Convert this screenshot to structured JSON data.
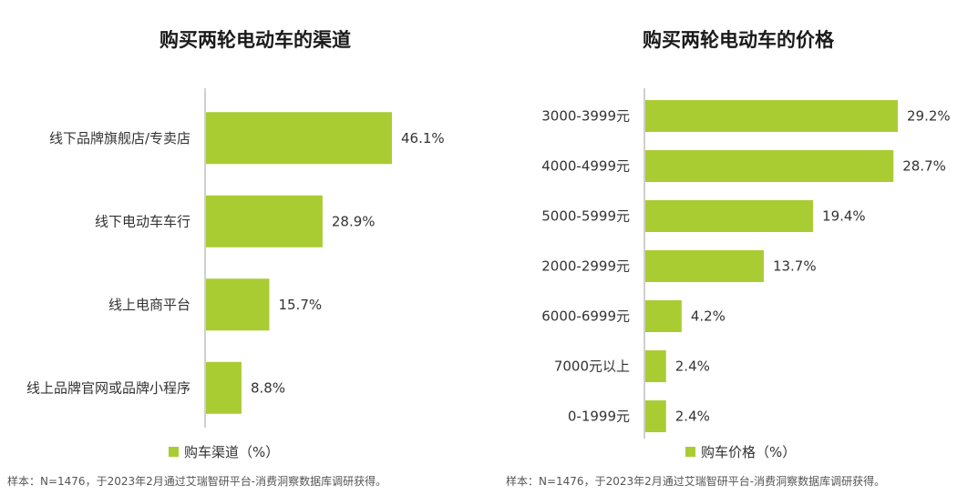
{
  "colors": {
    "bar": "#aacc33",
    "axis": "#bfbfbf",
    "text": "#333333"
  },
  "chart_data": [
    {
      "type": "bar",
      "orientation": "horizontal",
      "title": "购买两轮电动车的渠道",
      "categories": [
        "线下品牌旗舰店/专卖店",
        "线下电动车车行",
        "线上电商平台",
        "线上品牌官网或品牌小程序"
      ],
      "series": [
        {
          "name": "购车渠道（%）",
          "values": [
            46.1,
            28.9,
            15.7,
            8.8
          ]
        }
      ],
      "value_labels": [
        "46.1%",
        "28.9%",
        "15.7%",
        "8.8%"
      ],
      "xlim": [
        0,
        50
      ],
      "legend": "bottom",
      "grid": false
    },
    {
      "type": "bar",
      "orientation": "horizontal",
      "title": "购买两轮电动车的价格",
      "categories": [
        "3000-3999元",
        "4000-4999元",
        "5000-5999元",
        "2000-2999元",
        "6000-6999元",
        "7000元以上",
        "0-1999元"
      ],
      "series": [
        {
          "name": "购车价格（%）",
          "values": [
            29.2,
            28.7,
            19.4,
            13.7,
            4.2,
            2.4,
            2.4
          ]
        }
      ],
      "value_labels": [
        "29.2%",
        "28.7%",
        "19.4%",
        "13.7%",
        "4.2%",
        "2.4%",
        "2.4%"
      ],
      "xlim": [
        0,
        32
      ],
      "legend": "bottom",
      "grid": false
    }
  ],
  "notes": {
    "left": "样本：N=1476，于2023年2月通过艾瑞智研平台-消费洞察数据库调研获得。",
    "right": "样本：N=1476，于2023年2月通过艾瑞智研平台-消费洞察数据库调研获得。"
  }
}
